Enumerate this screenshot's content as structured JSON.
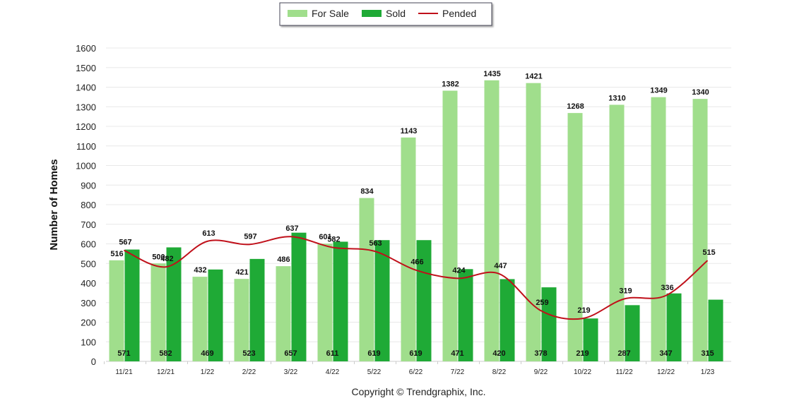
{
  "chart_data": {
    "type": "bar",
    "ylabel": "Number of Homes",
    "ylim": [
      0,
      1600
    ],
    "yticks": [
      0,
      100,
      200,
      300,
      400,
      500,
      600,
      700,
      800,
      900,
      1000,
      1100,
      1200,
      1300,
      1400,
      1500,
      1600
    ],
    "grid": true,
    "legend_position": "top",
    "categories": [
      "11/21",
      "12/21",
      "1/22",
      "2/22",
      "3/22",
      "4/22",
      "5/22",
      "6/22",
      "7/22",
      "8/22",
      "9/22",
      "10/22",
      "11/22",
      "12/22",
      "1/23"
    ],
    "series": [
      {
        "name": "For Sale",
        "type": "bar",
        "color": "#a0de8c",
        "values": [
          516,
          500,
          432,
          421,
          486,
          601,
          834,
          1143,
          1382,
          1435,
          1421,
          1268,
          1310,
          1349,
          1340
        ]
      },
      {
        "name": "Sold",
        "type": "bar",
        "color": "#1faa36",
        "values": [
          571,
          582,
          469,
          523,
          657,
          611,
          619,
          619,
          471,
          420,
          378,
          219,
          287,
          347,
          315
        ]
      },
      {
        "name": "Pended",
        "type": "line",
        "color": "#c0101a",
        "values": [
          567,
          482,
          613,
          597,
          637,
          582,
          563,
          466,
          424,
          447,
          259,
          219,
          319,
          336,
          515
        ]
      }
    ]
  },
  "copyright": "Copyright © Trendgraphix, Inc."
}
